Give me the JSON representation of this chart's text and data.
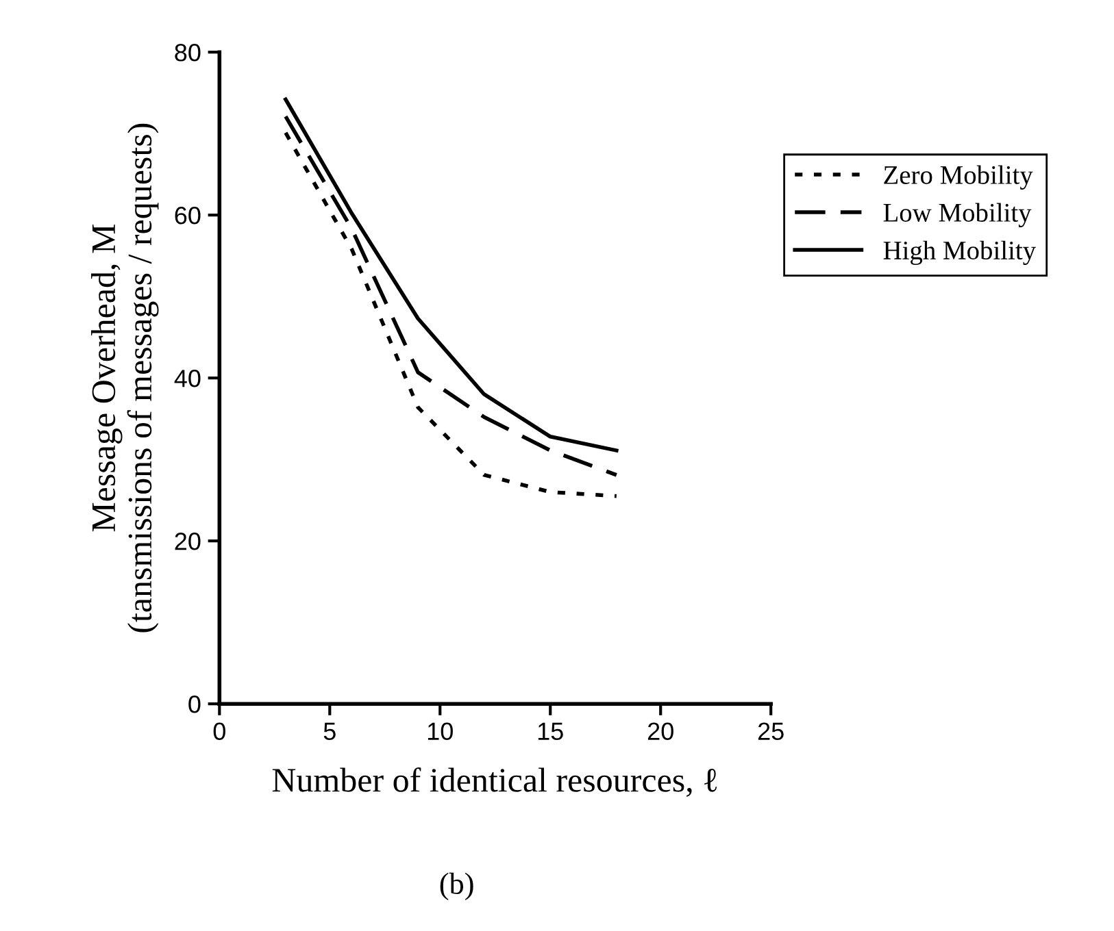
{
  "chart_data": {
    "type": "line",
    "xlabel": "Number of identical resources, ℓ",
    "ylabel": "Message Overhead, M\n(tansmissions of messages / requests)",
    "x": [
      3,
      6,
      9,
      12,
      15,
      18
    ],
    "series": [
      {
        "name": "Zero Mobility",
        "color": "#000000",
        "line_style": "dotted",
        "values": [
          70.1,
          55.8,
          36.4,
          28.1,
          26.0,
          25.5
        ]
      },
      {
        "name": "Low Mobility",
        "color": "#000000",
        "line_style": "dashed",
        "values": [
          72.1,
          58.3,
          40.7,
          35.2,
          31.1,
          28.1
        ]
      },
      {
        "name": "High Mobility",
        "color": "#000000",
        "line_style": "solid",
        "values": [
          74.2,
          60.2,
          47.3,
          38.0,
          32.8,
          31.1
        ]
      }
    ],
    "xlim": [
      0,
      25
    ],
    "xticks": [
      0,
      5,
      10,
      15,
      20,
      25
    ],
    "ylim": [
      0,
      80
    ],
    "yticks": [
      0,
      20,
      40,
      60,
      80
    ],
    "legend": "right",
    "annotations": [
      "(b)"
    ]
  }
}
